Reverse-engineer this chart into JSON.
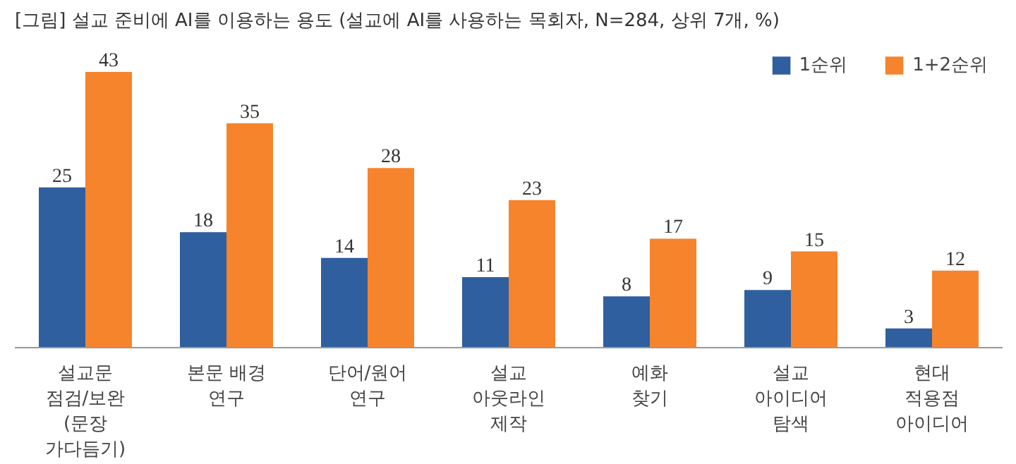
{
  "chart_data": {
    "type": "bar",
    "title": "[그림] 설교 준비에 AI를 이용하는 용도 (설교에 AI를 사용하는 목회자, N=284, 상위 7개, %)",
    "categories": [
      "설교문\n점검/보완\n(문장\n가다듬기)",
      "본문 배경\n연구",
      "단어/원어\n연구",
      "설교\n아웃라인\n제작",
      "예화\n찾기",
      "설교\n아이디어\n탐색",
      "현대\n적용점\n아이디어"
    ],
    "series": [
      {
        "name": "1순위",
        "color": "#2f5f9e",
        "values": [
          25,
          18,
          14,
          11,
          8,
          9,
          3
        ]
      },
      {
        "name": "1+2순위",
        "color": "#f5842c",
        "values": [
          43,
          35,
          28,
          23,
          17,
          15,
          12
        ]
      }
    ],
    "data_labels": true,
    "legend": "top right",
    "grid": false
  }
}
